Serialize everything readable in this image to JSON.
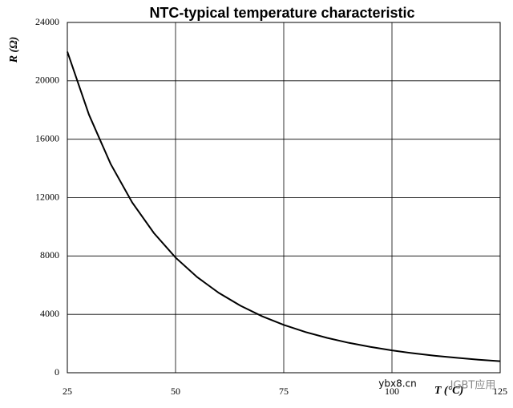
{
  "chart_data": {
    "type": "line",
    "title": "NTC-typical temperature characteristic",
    "y_label": "R (Ω)",
    "x_label": "T (°C)",
    "x": [
      25,
      30,
      35,
      40,
      45,
      50,
      55,
      60,
      65,
      70,
      75,
      80,
      85,
      90,
      95,
      100,
      105,
      110,
      115,
      120,
      125
    ],
    "series": [
      {
        "name": "R",
        "color": "#000000",
        "values": [
          22000,
          17680,
          14310,
          11660,
          9570,
          7890,
          6550,
          5470,
          4590,
          3870,
          3280,
          2790,
          2390,
          2050,
          1770,
          1530,
          1330,
          1160,
          1020,
          895,
          790
        ]
      }
    ],
    "xlim": [
      25,
      125
    ],
    "xticks": [
      25,
      50,
      75,
      100,
      125
    ],
    "ylim": [
      0,
      24000
    ],
    "yticks": [
      0,
      4000,
      8000,
      12000,
      16000,
      20000,
      24000
    ],
    "grid": true,
    "watermark": [
      "ybx8.cn",
      "IGBT应用"
    ]
  }
}
